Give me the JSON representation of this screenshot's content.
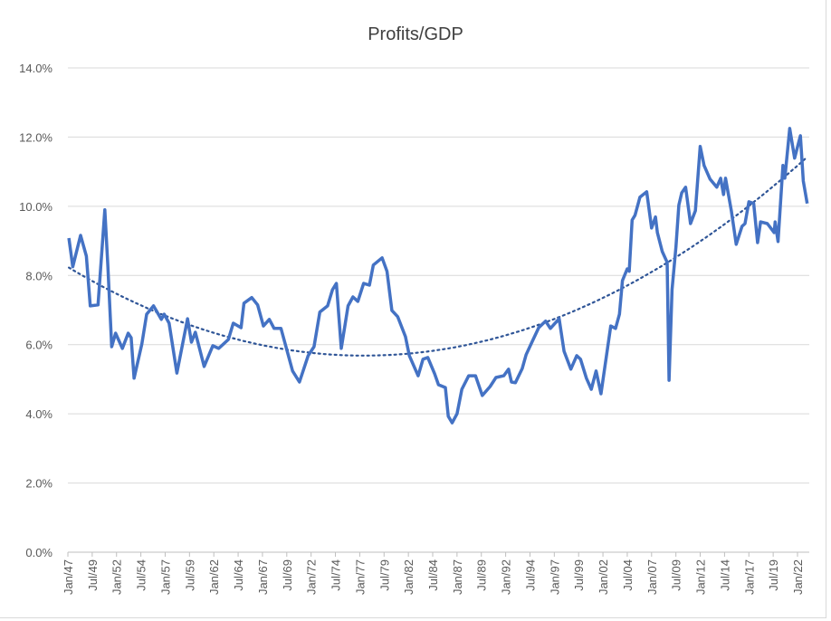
{
  "chart_data": {
    "type": "line",
    "title": "Profits/GDP",
    "xlabel": "",
    "ylabel": "",
    "ylim": [
      0,
      14
    ],
    "y_ticks": [
      "0.0%",
      "2.0%",
      "4.0%",
      "6.0%",
      "8.0%",
      "10.0%",
      "12.0%",
      "14.0%"
    ],
    "x_ticks": [
      "Jan/47",
      "Jul/49",
      "Jan/52",
      "Jul/54",
      "Jan/57",
      "Jul/59",
      "Jan/62",
      "Jul/64",
      "Jan/67",
      "Jul/69",
      "Jan/72",
      "Jul/74",
      "Jan/77",
      "Jul/79",
      "Jan/82",
      "Jul/84",
      "Jan/87",
      "Jul/89",
      "Jan/92",
      "Jul/94",
      "Jan/97",
      "Jul/99",
      "Jan/02",
      "Jul/04",
      "Jan/07",
      "Jul/09",
      "Jan/12",
      "Jul/14",
      "Jan/17",
      "Jul/19",
      "Jan/22"
    ],
    "x_unit": "year",
    "xlim": [
      1947,
      2023.4
    ],
    "grid": true,
    "legend": "none",
    "colors": {
      "series": "#4472C4",
      "trendline": "#2F5597",
      "grid": "#d9d9d9"
    },
    "series": [
      {
        "x": [
          1947.1,
          1947.5,
          1948.3,
          1948.9,
          1949.3,
          1950.1,
          1950.8,
          1951.1,
          1951.5,
          1951.9,
          1952.6,
          1953.2,
          1953.5,
          1953.8,
          1954.6,
          1955.1,
          1955.8,
          1956.6,
          1956.9,
          1957.4,
          1958.2,
          1959.3,
          1959.7,
          1960.1,
          1961.0,
          1961.9,
          1962.5,
          1963.5,
          1964.0,
          1964.8,
          1965.1,
          1965.9,
          1966.5,
          1967.1,
          1967.7,
          1968.2,
          1968.9,
          1970.1,
          1970.8,
          1971.7,
          1972.3,
          1972.9,
          1973.7,
          1974.2,
          1974.6,
          1975.1,
          1975.8,
          1976.3,
          1976.8,
          1977.4,
          1978.0,
          1978.4,
          1979.3,
          1979.8,
          1980.3,
          1980.9,
          1981.7,
          1982.1,
          1983.0,
          1983.5,
          1984.0,
          1984.7,
          1985.1,
          1985.8,
          1986.1,
          1986.5,
          1987.0,
          1987.5,
          1988.2,
          1988.9,
          1989.6,
          1990.4,
          1991.0,
          1991.8,
          1992.3,
          1992.6,
          1993.0,
          1993.7,
          1994.1,
          1994.7,
          1995.4,
          1996.1,
          1996.6,
          1997.5,
          1998.0,
          1998.7,
          1999.3,
          1999.7,
          2000.3,
          2000.8,
          2001.3,
          2001.8,
          2002.8,
          2003.3,
          2003.7,
          2004.0,
          2004.5,
          2004.7,
          2005.0,
          2005.3,
          2005.8,
          2006.5,
          2007.0,
          2007.4,
          2007.6,
          2008.1,
          2008.6,
          2008.8,
          2009.1,
          2009.5,
          2009.8,
          2010.1,
          2010.5,
          2011.0,
          2011.5,
          2012.0,
          2012.4,
          2013.0,
          2013.7,
          2014.1,
          2014.4,
          2014.6,
          2015.2,
          2015.7,
          2016.3,
          2016.6,
          2017.0,
          2017.5,
          2017.9,
          2018.2,
          2018.9,
          2019.6,
          2019.7,
          2020.0,
          2020.5,
          2020.7,
          2021.2,
          2021.7,
          2022.3,
          2022.6,
          2023.0
        ],
        "values": [
          9.08,
          8.25,
          9.16,
          8.56,
          7.12,
          7.15,
          9.9,
          8.3,
          5.94,
          6.33,
          5.89,
          6.33,
          6.2,
          5.03,
          6.02,
          6.88,
          7.12,
          6.73,
          6.88,
          6.62,
          5.18,
          6.75,
          6.07,
          6.36,
          5.37,
          5.97,
          5.89,
          6.15,
          6.62,
          6.49,
          7.2,
          7.36,
          7.15,
          6.54,
          6.73,
          6.47,
          6.47,
          5.24,
          4.92,
          5.68,
          5.94,
          6.94,
          7.12,
          7.59,
          7.77,
          5.89,
          7.12,
          7.38,
          7.25,
          7.77,
          7.72,
          8.3,
          8.51,
          8.12,
          6.99,
          6.81,
          6.23,
          5.68,
          5.1,
          5.58,
          5.63,
          5.16,
          4.84,
          4.76,
          3.93,
          3.74,
          4.0,
          4.71,
          5.1,
          5.1,
          4.53,
          4.79,
          5.05,
          5.1,
          5.29,
          4.92,
          4.9,
          5.31,
          5.71,
          6.07,
          6.49,
          6.68,
          6.47,
          6.75,
          5.81,
          5.29,
          5.68,
          5.58,
          5.03,
          4.71,
          5.24,
          4.58,
          6.54,
          6.47,
          6.88,
          7.85,
          8.19,
          8.12,
          9.6,
          9.74,
          10.26,
          10.42,
          9.37,
          9.69,
          9.24,
          8.69,
          8.38,
          4.97,
          7.59,
          8.82,
          10.03,
          10.39,
          10.55,
          9.5,
          9.87,
          11.73,
          11.18,
          10.79,
          10.55,
          10.81,
          10.34,
          10.81,
          9.87,
          8.9,
          9.42,
          9.5,
          10.13,
          10.08,
          8.95,
          9.55,
          9.5,
          9.24,
          9.55,
          8.98,
          11.18,
          10.81,
          12.25,
          11.39,
          12.04,
          10.73,
          10.08
        ]
      }
    ],
    "trendline": {
      "type": "polynomial",
      "order": 2,
      "style": "dotted"
    }
  }
}
